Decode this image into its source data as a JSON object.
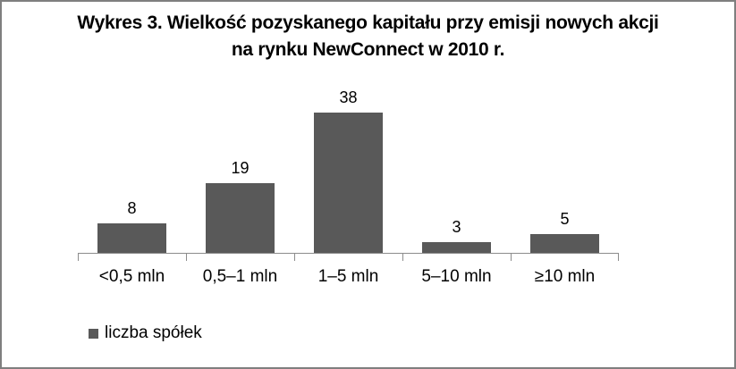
{
  "frame": {
    "background": "#ffffff",
    "border_color": "#7f7f7f"
  },
  "chart_data": {
    "type": "bar",
    "title_line1": "Wykres 3. Wielkość pozyskanego kapitału przy emisji nowych akcji",
    "title_line2": "na rynku NewConnect w 2010 r.",
    "categories": [
      "<0,5 mln",
      "0,5–1 mln",
      "1–5 mln",
      "5–10 mln",
      "≥10 mln"
    ],
    "values": [
      8,
      19,
      38,
      3,
      5
    ],
    "series_name": "liczba spółek",
    "data_labels": [
      8,
      19,
      38,
      3,
      5
    ],
    "bar_color": "#595959",
    "axis_color": "#8c8c8c",
    "text_color": "#000000",
    "ylim": [
      0,
      40
    ],
    "grid": false,
    "legend_position": "bottom-left",
    "y_axis_visible": false
  },
  "legend": {
    "label": "liczba spółek",
    "swatch_color": "#595959"
  }
}
